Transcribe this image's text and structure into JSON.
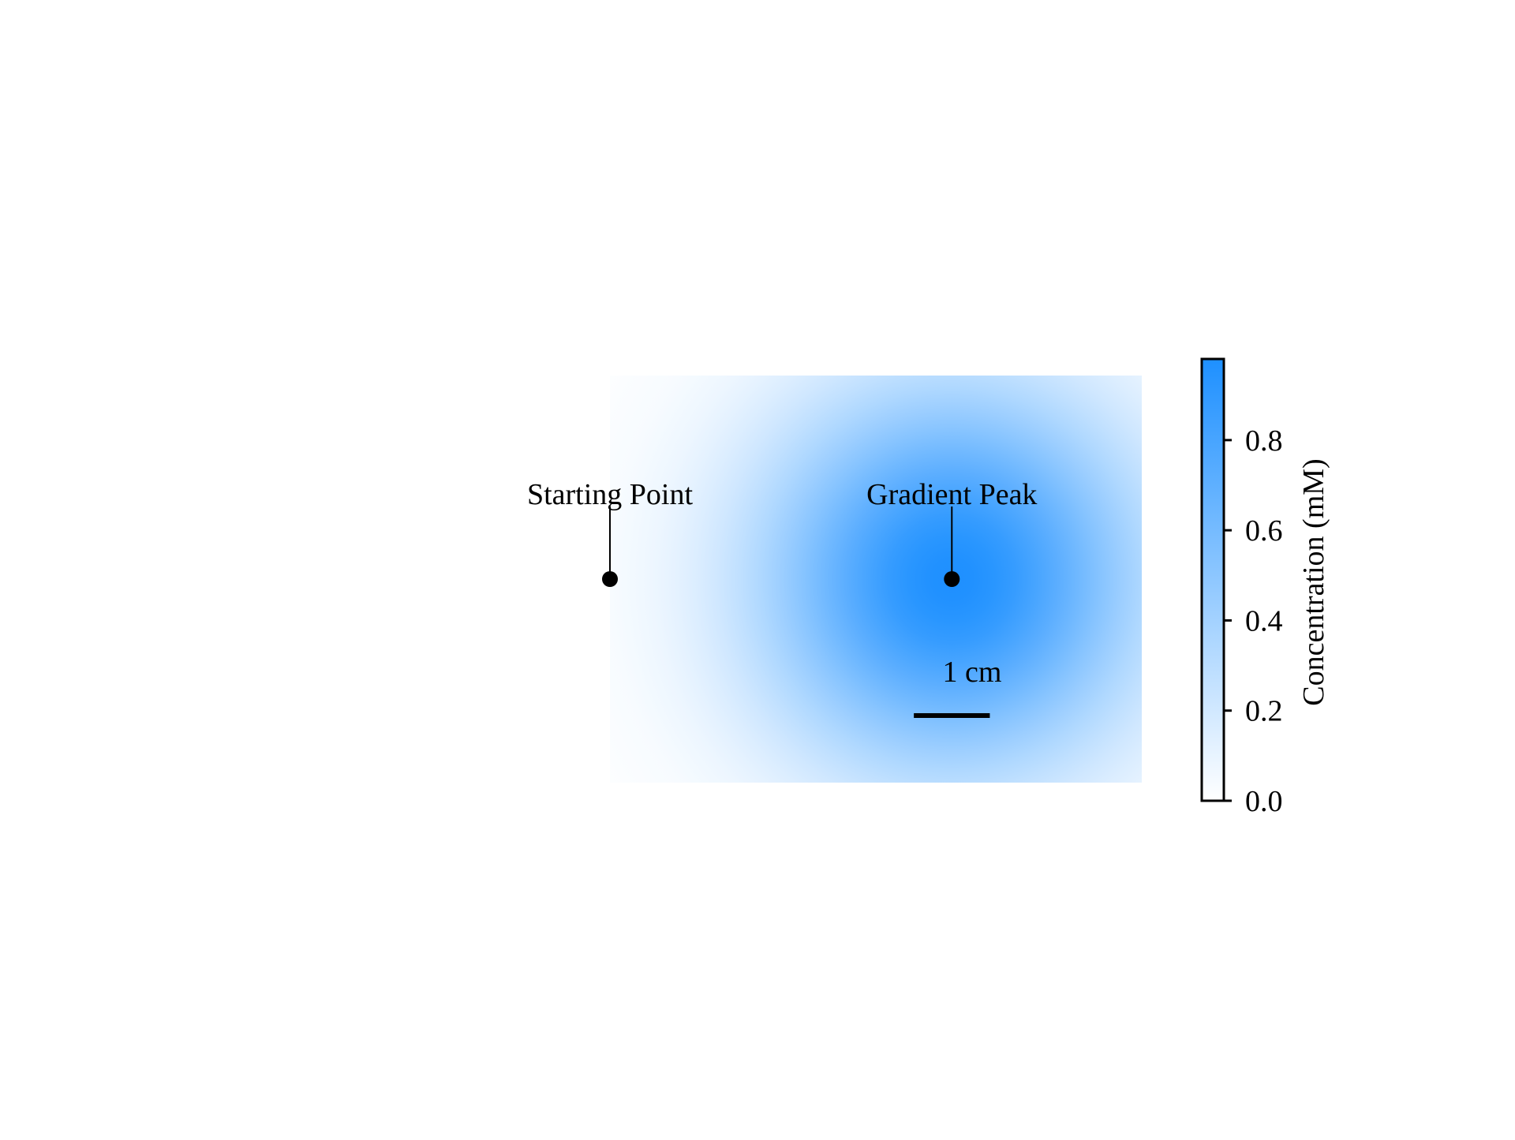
{
  "chart_data": {
    "type": "heatmap",
    "title": "",
    "colormap": {
      "low_color": "#ffffff",
      "high_color": "#1e90ff"
    },
    "field": {
      "model": "radial gaussian",
      "peak_value": 0.98,
      "peak_center_cm": [
        0,
        0
      ],
      "sigma_cm": 1.75,
      "x_extent_cm": [
        -4.5,
        2.5
      ],
      "y_extent_cm": [
        -3.0,
        3.0
      ]
    },
    "annotations": [
      {
        "label": "Starting Point",
        "x_cm": -4.5,
        "y_cm": 0
      },
      {
        "label": "Gradient Peak",
        "x_cm": 0,
        "y_cm": 0
      }
    ],
    "scale_bar": {
      "label": "1 cm",
      "length_cm": 1
    },
    "colorbar": {
      "label": "Concentration (mM)",
      "range": [
        0,
        0.98
      ],
      "ticks": [
        "0.0",
        "0.2",
        "0.4",
        "0.6",
        "0.8"
      ],
      "tick_values": [
        0.0,
        0.2,
        0.4,
        0.6,
        0.8
      ]
    }
  }
}
